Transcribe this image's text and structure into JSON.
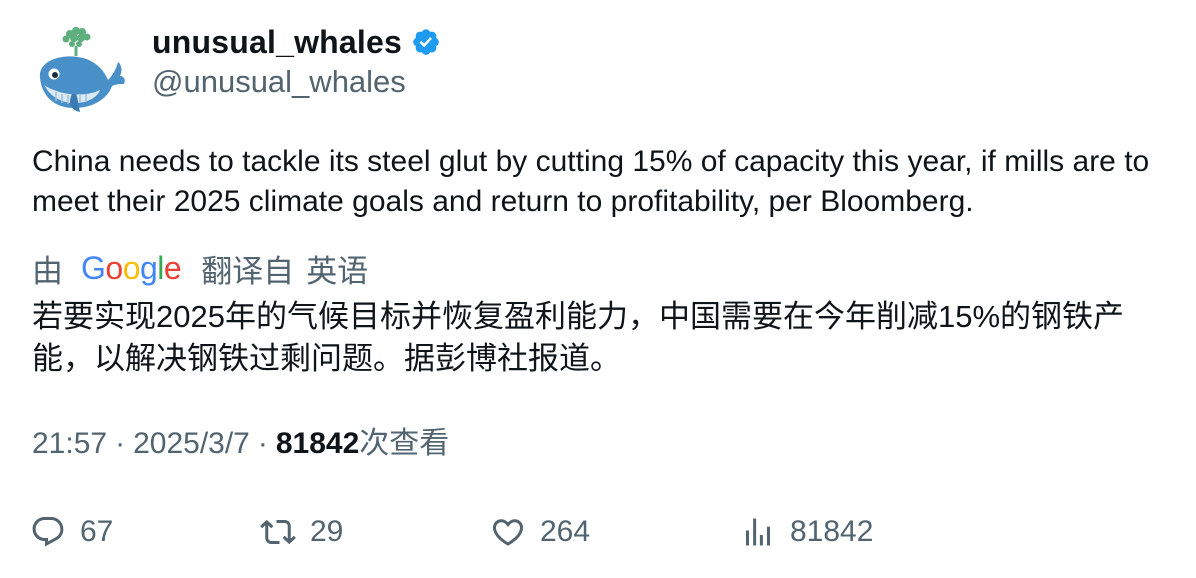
{
  "author": {
    "display_name": "unusual_whales",
    "handle": "@unusual_whales",
    "verified": true,
    "verified_color": "#1d9bf0"
  },
  "tweet": {
    "text": "China needs to tackle its steel glut by cutting 15% of capacity this year, if mills are to meet their 2025 climate goals and return to profitability, per Bloomberg."
  },
  "translation": {
    "by_label": "由",
    "provider": "Google",
    "translated_from_label": "翻译自",
    "source_language": "英语",
    "text": "若要实现2025年的气候目标并恢复盈利能力，中国需要在今年削减15%的钢铁产能，以解决钢铁过剩问题。据彭博社报道。"
  },
  "meta": {
    "time": "21:57",
    "separator": "·",
    "date": "2025/3/7",
    "views_count": "81842",
    "views_label": "次查看"
  },
  "actions": {
    "replies": "67",
    "retweets": "29",
    "likes": "264",
    "views": "81842"
  },
  "icons": {
    "avatar": "whale-avatar-icon",
    "verified": "verified-badge-icon",
    "reply": "reply-icon",
    "retweet": "retweet-icon",
    "like": "heart-icon",
    "views": "views-icon"
  }
}
